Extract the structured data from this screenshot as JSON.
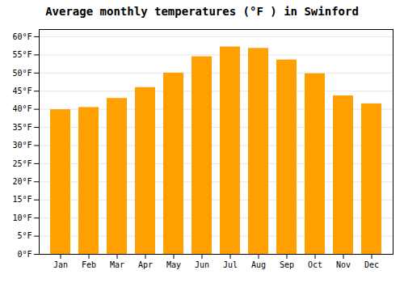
{
  "chart_data": {
    "type": "bar",
    "title": "Average monthly temperatures (°F ) in Swinford",
    "categories": [
      "Jan",
      "Feb",
      "Mar",
      "Apr",
      "May",
      "Jun",
      "Jul",
      "Aug",
      "Sep",
      "Oct",
      "Nov",
      "Dec"
    ],
    "values": [
      39.9,
      40.5,
      43.0,
      46.0,
      50.0,
      54.5,
      57.2,
      56.8,
      53.6,
      49.8,
      43.7,
      41.5
    ],
    "color": "#FFA000",
    "ylim": [
      0,
      62
    ],
    "yticks": [
      {
        "value": 0,
        "label": "0°F"
      },
      {
        "value": 5,
        "label": "5°F"
      },
      {
        "value": 10,
        "label": "10°F"
      },
      {
        "value": 15,
        "label": "15°F"
      },
      {
        "value": 20,
        "label": "20°F"
      },
      {
        "value": 25,
        "label": "25°F"
      },
      {
        "value": 30,
        "label": "30°F"
      },
      {
        "value": 35,
        "label": "35°F"
      },
      {
        "value": 40,
        "label": "40°F"
      },
      {
        "value": 45,
        "label": "45°F"
      },
      {
        "value": 50,
        "label": "50°F"
      },
      {
        "value": 55,
        "label": "55°F"
      },
      {
        "value": 60,
        "label": "60°F"
      }
    ],
    "grid": true
  }
}
